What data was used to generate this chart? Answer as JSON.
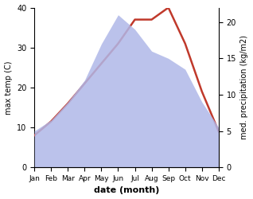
{
  "months": [
    "Jan",
    "Feb",
    "Mar",
    "Apr",
    "May",
    "Jun",
    "Jul",
    "Aug",
    "Sep",
    "Oct",
    "Nov",
    "Dec"
  ],
  "month_indices": [
    1,
    2,
    3,
    4,
    5,
    6,
    7,
    8,
    9,
    10,
    11,
    12
  ],
  "temp": [
    8.0,
    11.5,
    16.0,
    21.0,
    26.0,
    31.0,
    37.0,
    37.0,
    40.0,
    31.0,
    19.0,
    9.0
  ],
  "precip": [
    5.0,
    6.5,
    9.0,
    12.0,
    17.0,
    21.0,
    19.0,
    16.0,
    15.0,
    13.5,
    9.0,
    5.5
  ],
  "temp_color": "#c0392b",
  "precip_fill_color": "#b0b8e8",
  "precip_fill_alpha": 0.85,
  "ylabel_left": "max temp (C)",
  "ylabel_right": "med. precipitation (kg/m2)",
  "xlabel": "date (month)",
  "ylim_left": [
    0,
    40
  ],
  "ylim_right": [
    0,
    22
  ],
  "yticks_left": [
    0,
    10,
    20,
    30,
    40
  ],
  "yticks_right": [
    0,
    5,
    10,
    15,
    20
  ],
  "bg_color": "#ffffff",
  "line_width": 1.8,
  "temp_fontsize": 7,
  "precip_fontsize": 7,
  "xlabel_fontsize": 8,
  "xtick_fontsize": 6.5,
  "ytick_fontsize": 7
}
